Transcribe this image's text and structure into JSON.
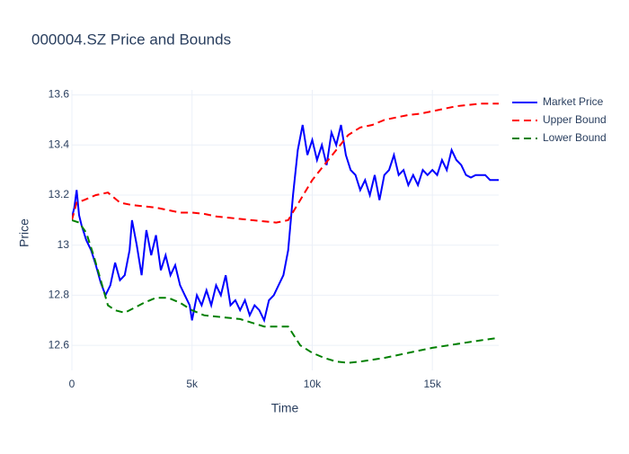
{
  "chart_data": {
    "type": "line",
    "title": "000004.SZ Price and Bounds",
    "xlabel": "Time",
    "ylabel": "Price",
    "xlim": [
      0,
      17760
    ],
    "ylim": [
      12.5,
      13.62
    ],
    "xticks": [
      0,
      {
        "value": 5000,
        "label": "5k"
      },
      {
        "value": 10000,
        "label": "10k"
      },
      {
        "value": 15000,
        "label": "15k"
      }
    ],
    "yticks": [
      12.6,
      12.8,
      13,
      13.2,
      13.4,
      13.6
    ],
    "grid": true,
    "legend": "outside-top-right",
    "series": [
      {
        "name": "Market Price",
        "color": "#0000ff",
        "dash": false,
        "x": [
          0,
          100,
          200,
          300,
          400,
          600,
          800,
          1000,
          1200,
          1400,
          1600,
          1800,
          2000,
          2200,
          2400,
          2500,
          2700,
          2900,
          3100,
          3300,
          3500,
          3700,
          3900,
          4100,
          4300,
          4500,
          4700,
          4900,
          5000,
          5200,
          5400,
          5600,
          5800,
          6000,
          6200,
          6400,
          6600,
          6800,
          7000,
          7200,
          7400,
          7600,
          7800,
          8000,
          8200,
          8400,
          8600,
          8800,
          9000,
          9200,
          9400,
          9600,
          9800,
          10000,
          10200,
          10400,
          10600,
          10800,
          11000,
          11200,
          11400,
          11600,
          11800,
          12000,
          12200,
          12400,
          12600,
          12800,
          13000,
          13200,
          13400,
          13600,
          13800,
          14000,
          14200,
          14400,
          14600,
          14800,
          15000,
          15200,
          15400,
          15600,
          15800,
          16000,
          16200,
          16400,
          16600,
          16800,
          17000,
          17200,
          17400,
          17760
        ],
        "values": [
          13.11,
          13.15,
          13.22,
          13.12,
          13.08,
          13.02,
          12.98,
          12.92,
          12.85,
          12.8,
          12.84,
          12.93,
          12.86,
          12.88,
          12.98,
          13.1,
          13.0,
          12.88,
          13.06,
          12.96,
          13.04,
          12.9,
          12.96,
          12.88,
          12.92,
          12.84,
          12.8,
          12.76,
          12.7,
          12.8,
          12.76,
          12.82,
          12.76,
          12.84,
          12.8,
          12.88,
          12.76,
          12.78,
          12.74,
          12.78,
          12.72,
          12.76,
          12.74,
          12.7,
          12.78,
          12.8,
          12.84,
          12.88,
          12.98,
          13.2,
          13.38,
          13.48,
          13.36,
          13.42,
          13.34,
          13.4,
          13.32,
          13.45,
          13.4,
          13.48,
          13.36,
          13.3,
          13.28,
          13.22,
          13.26,
          13.2,
          13.28,
          13.18,
          13.28,
          13.3,
          13.36,
          13.28,
          13.3,
          13.24,
          13.28,
          13.24,
          13.3,
          13.28,
          13.3,
          13.28,
          13.34,
          13.3,
          13.38,
          13.34,
          13.32,
          13.28,
          13.27,
          13.28,
          13.28,
          13.28,
          13.26,
          13.26
        ]
      },
      {
        "name": "Upper Bound",
        "color": "#ff0000",
        "dash": true,
        "x": [
          0,
          200,
          500,
          1000,
          1500,
          2000,
          2500,
          3000,
          3500,
          4000,
          4500,
          5000,
          5500,
          6000,
          6500,
          7000,
          7500,
          8000,
          8500,
          9000,
          9500,
          10000,
          10500,
          11000,
          11500,
          12000,
          12500,
          13000,
          13500,
          14000,
          14500,
          15000,
          15500,
          16000,
          16500,
          17000,
          17760
        ],
        "values": [
          13.1,
          13.17,
          13.18,
          13.2,
          13.21,
          13.17,
          13.16,
          13.155,
          13.15,
          13.14,
          13.13,
          13.13,
          13.125,
          13.115,
          13.11,
          13.105,
          13.1,
          13.095,
          13.09,
          13.1,
          13.18,
          13.26,
          13.32,
          13.38,
          13.44,
          13.47,
          13.48,
          13.5,
          13.51,
          13.52,
          13.525,
          13.535,
          13.545,
          13.555,
          13.56,
          13.565,
          13.565
        ]
      },
      {
        "name": "Lower Bound",
        "color": "#008000",
        "dash": true,
        "x": [
          0,
          300,
          600,
          900,
          1200,
          1500,
          1800,
          2200,
          2600,
          3000,
          3500,
          4000,
          4500,
          5000,
          5500,
          6000,
          6500,
          7000,
          7500,
          8000,
          8500,
          9000,
          9500,
          10000,
          10500,
          11000,
          11500,
          12000,
          13000,
          14000,
          15000,
          16000,
          17000,
          17760
        ],
        "values": [
          13.1,
          13.09,
          13.05,
          12.96,
          12.86,
          12.76,
          12.74,
          12.73,
          12.75,
          12.77,
          12.79,
          12.79,
          12.77,
          12.74,
          12.72,
          12.715,
          12.71,
          12.705,
          12.69,
          12.675,
          12.675,
          12.675,
          12.6,
          12.57,
          12.55,
          12.535,
          12.53,
          12.535,
          12.55,
          12.57,
          12.59,
          12.605,
          12.62,
          12.63
        ]
      }
    ]
  }
}
